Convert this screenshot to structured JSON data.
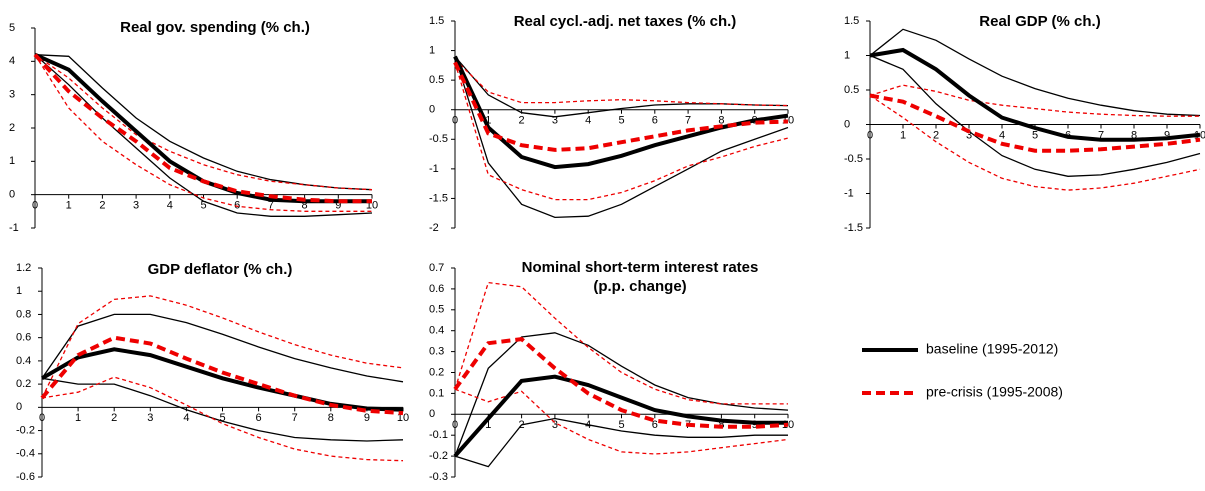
{
  "legend": [
    {
      "name": "baseline (1995-2012)",
      "color": "#000000",
      "dashed": false
    },
    {
      "name": "pre-crisis (1995-2008)",
      "color": "#ee0000",
      "dashed": true
    }
  ],
  "chart_data": [
    {
      "type": "line",
      "title": "Real gov. spending (% ch.)",
      "x": [
        0,
        1,
        2,
        3,
        4,
        5,
        6,
        7,
        8,
        9,
        10
      ],
      "xlim": [
        0,
        10
      ],
      "xticks": [
        0,
        1,
        2,
        3,
        4,
        5,
        6,
        7,
        8,
        9,
        10
      ],
      "ylim": [
        -1,
        5
      ],
      "yticks": [
        -1,
        0,
        1,
        2,
        3,
        4,
        5
      ],
      "series": [
        {
          "color": "#000000",
          "width": 1.3,
          "dashed": false,
          "values": [
            4.2,
            3.3,
            2.3,
            1.4,
            0.5,
            -0.2,
            -0.55,
            -0.65,
            -0.65,
            -0.6,
            -0.55
          ]
        },
        {
          "color": "#000000",
          "width": 1.3,
          "dashed": false,
          "values": [
            4.2,
            4.15,
            3.2,
            2.3,
            1.6,
            1.1,
            0.7,
            0.45,
            0.3,
            0.2,
            0.15
          ]
        },
        {
          "color": "#ee0000",
          "width": 1.3,
          "dashed": true,
          "values": [
            4.2,
            2.6,
            1.6,
            0.9,
            0.3,
            -0.1,
            -0.35,
            -0.45,
            -0.5,
            -0.5,
            -0.5
          ]
        },
        {
          "color": "#ee0000",
          "width": 1.3,
          "dashed": true,
          "values": [
            4.2,
            3.5,
            2.6,
            1.8,
            1.3,
            0.9,
            0.6,
            0.4,
            0.3,
            0.2,
            0.15
          ]
        },
        {
          "color": "#000000",
          "width": 4,
          "dashed": false,
          "values": [
            4.2,
            3.75,
            2.8,
            1.9,
            1.0,
            0.4,
            0.05,
            -0.15,
            -0.2,
            -0.2,
            -0.2
          ]
        },
        {
          "color": "#ee0000",
          "width": 4,
          "dashed": true,
          "values": [
            4.2,
            3.1,
            2.3,
            1.6,
            0.8,
            0.4,
            0.1,
            -0.05,
            -0.15,
            -0.2,
            -0.2
          ]
        }
      ]
    },
    {
      "type": "line",
      "title": "Real cycl.-adj. net taxes (% ch.)",
      "x": [
        0,
        1,
        2,
        3,
        4,
        5,
        6,
        7,
        8,
        9,
        10
      ],
      "xlim": [
        0,
        10
      ],
      "xticks": [
        0,
        1,
        2,
        3,
        4,
        5,
        6,
        7,
        8,
        9,
        10
      ],
      "ylim": [
        -2,
        1.5
      ],
      "yticks": [
        -2,
        -1.5,
        -1,
        -0.5,
        0,
        0.5,
        1,
        1.5
      ],
      "series": [
        {
          "color": "#000000",
          "width": 1.3,
          "dashed": false,
          "values": [
            0.9,
            -0.9,
            -1.6,
            -1.82,
            -1.8,
            -1.6,
            -1.3,
            -1.0,
            -0.7,
            -0.5,
            -0.3
          ]
        },
        {
          "color": "#000000",
          "width": 1.3,
          "dashed": false,
          "values": [
            0.9,
            0.25,
            -0.05,
            -0.12,
            -0.05,
            0.02,
            0.08,
            0.1,
            0.1,
            0.08,
            0.07
          ]
        },
        {
          "color": "#ee0000",
          "width": 1.3,
          "dashed": true,
          "values": [
            0.8,
            -1.1,
            -1.35,
            -1.52,
            -1.52,
            -1.4,
            -1.2,
            -0.95,
            -0.8,
            -0.62,
            -0.48
          ]
        },
        {
          "color": "#ee0000",
          "width": 1.3,
          "dashed": true,
          "values": [
            0.85,
            0.3,
            0.12,
            0.12,
            0.15,
            0.17,
            0.15,
            0.12,
            0.1,
            0.08,
            0.07
          ]
        },
        {
          "color": "#000000",
          "width": 4,
          "dashed": false,
          "values": [
            0.9,
            -0.3,
            -0.8,
            -0.97,
            -0.92,
            -0.78,
            -0.6,
            -0.45,
            -0.3,
            -0.18,
            -0.1
          ]
        },
        {
          "color": "#ee0000",
          "width": 4,
          "dashed": true,
          "values": [
            0.8,
            -0.4,
            -0.6,
            -0.68,
            -0.65,
            -0.55,
            -0.45,
            -0.35,
            -0.28,
            -0.22,
            -0.2
          ]
        }
      ]
    },
    {
      "type": "line",
      "title": "Real GDP (% ch.)",
      "x": [
        0,
        1,
        2,
        3,
        4,
        5,
        6,
        7,
        8,
        9,
        10
      ],
      "xlim": [
        0,
        10
      ],
      "xticks": [
        0,
        1,
        2,
        3,
        4,
        5,
        6,
        7,
        8,
        9,
        10
      ],
      "ylim": [
        -1.5,
        1.5
      ],
      "yticks": [
        -1.5,
        -1,
        -0.5,
        0,
        0.5,
        1,
        1.5
      ],
      "series": [
        {
          "color": "#000000",
          "width": 1.3,
          "dashed": false,
          "values": [
            1.0,
            0.8,
            0.3,
            -0.1,
            -0.45,
            -0.65,
            -0.75,
            -0.73,
            -0.65,
            -0.55,
            -0.42
          ]
        },
        {
          "color": "#000000",
          "width": 1.3,
          "dashed": false,
          "values": [
            1.0,
            1.38,
            1.22,
            0.95,
            0.7,
            0.52,
            0.38,
            0.28,
            0.2,
            0.15,
            0.13
          ]
        },
        {
          "color": "#ee0000",
          "width": 1.3,
          "dashed": true,
          "values": [
            0.42,
            0.1,
            -0.25,
            -0.55,
            -0.78,
            -0.9,
            -0.95,
            -0.92,
            -0.85,
            -0.75,
            -0.65
          ]
        },
        {
          "color": "#ee0000",
          "width": 1.3,
          "dashed": true,
          "values": [
            0.42,
            0.57,
            0.48,
            0.35,
            0.28,
            0.23,
            0.18,
            0.15,
            0.13,
            0.12,
            0.12
          ]
        },
        {
          "color": "#000000",
          "width": 4,
          "dashed": false,
          "values": [
            1.0,
            1.08,
            0.8,
            0.42,
            0.1,
            -0.05,
            -0.18,
            -0.22,
            -0.22,
            -0.2,
            -0.15
          ]
        },
        {
          "color": "#ee0000",
          "width": 4,
          "dashed": true,
          "values": [
            0.42,
            0.33,
            0.12,
            -0.1,
            -0.28,
            -0.38,
            -0.38,
            -0.36,
            -0.32,
            -0.28,
            -0.22
          ]
        }
      ]
    },
    {
      "type": "line",
      "title": "GDP deflator (% ch.)",
      "x": [
        0,
        1,
        2,
        3,
        4,
        5,
        6,
        7,
        8,
        9,
        10
      ],
      "xlim": [
        0,
        10
      ],
      "xticks": [
        0,
        1,
        2,
        3,
        4,
        5,
        6,
        7,
        8,
        9,
        10
      ],
      "ylim": [
        -0.6,
        1.2
      ],
      "yticks": [
        -0.6,
        -0.4,
        -0.2,
        0,
        0.2,
        0.4,
        0.6,
        0.8,
        1,
        1.2
      ],
      "series": [
        {
          "color": "#000000",
          "width": 1.3,
          "dashed": false,
          "values": [
            0.25,
            0.2,
            0.2,
            0.1,
            -0.02,
            -0.12,
            -0.2,
            -0.26,
            -0.28,
            -0.29,
            -0.28
          ]
        },
        {
          "color": "#000000",
          "width": 1.3,
          "dashed": false,
          "values": [
            0.25,
            0.7,
            0.8,
            0.8,
            0.73,
            0.63,
            0.52,
            0.42,
            0.34,
            0.27,
            0.22
          ]
        },
        {
          "color": "#ee0000",
          "width": 1.3,
          "dashed": true,
          "values": [
            0.08,
            0.13,
            0.26,
            0.17,
            0.02,
            -0.14,
            -0.26,
            -0.36,
            -0.42,
            -0.45,
            -0.46
          ]
        },
        {
          "color": "#ee0000",
          "width": 1.3,
          "dashed": true,
          "values": [
            0.08,
            0.72,
            0.93,
            0.96,
            0.88,
            0.77,
            0.65,
            0.54,
            0.45,
            0.38,
            0.34
          ]
        },
        {
          "color": "#000000",
          "width": 4,
          "dashed": false,
          "values": [
            0.25,
            0.43,
            0.5,
            0.45,
            0.35,
            0.25,
            0.17,
            0.1,
            0.03,
            -0.01,
            -0.02
          ]
        },
        {
          "color": "#ee0000",
          "width": 4,
          "dashed": true,
          "values": [
            0.08,
            0.45,
            0.6,
            0.55,
            0.42,
            0.3,
            0.2,
            0.1,
            0.02,
            -0.03,
            -0.05
          ]
        }
      ]
    },
    {
      "type": "line",
      "title": [
        "Nominal short-term interest rates",
        "(p.p. change)"
      ],
      "x": [
        0,
        1,
        2,
        3,
        4,
        5,
        6,
        7,
        8,
        9,
        10
      ],
      "xlim": [
        0,
        10
      ],
      "xticks": [
        0,
        1,
        2,
        3,
        4,
        5,
        6,
        7,
        8,
        9,
        10
      ],
      "ylim": [
        -0.3,
        0.7
      ],
      "yticks": [
        -0.3,
        -0.2,
        -0.1,
        0,
        0.1,
        0.2,
        0.3,
        0.4,
        0.5,
        0.6,
        0.7
      ],
      "series": [
        {
          "color": "#000000",
          "width": 1.3,
          "dashed": false,
          "values": [
            -0.2,
            -0.25,
            -0.05,
            -0.02,
            -0.05,
            -0.08,
            -0.1,
            -0.11,
            -0.11,
            -0.1,
            -0.1
          ]
        },
        {
          "color": "#000000",
          "width": 1.3,
          "dashed": false,
          "values": [
            -0.2,
            0.22,
            0.37,
            0.39,
            0.33,
            0.23,
            0.14,
            0.08,
            0.05,
            0.03,
            0.02
          ]
        },
        {
          "color": "#ee0000",
          "width": 1.3,
          "dashed": true,
          "values": [
            0.12,
            0.06,
            0.11,
            -0.04,
            -0.12,
            -0.18,
            -0.19,
            -0.18,
            -0.16,
            -0.14,
            -0.12
          ]
        },
        {
          "color": "#ee0000",
          "width": 1.3,
          "dashed": true,
          "values": [
            0.12,
            0.63,
            0.61,
            0.46,
            0.32,
            0.2,
            0.12,
            0.07,
            0.05,
            0.05,
            0.05
          ]
        },
        {
          "color": "#000000",
          "width": 4,
          "dashed": false,
          "values": [
            -0.2,
            -0.02,
            0.16,
            0.18,
            0.14,
            0.08,
            0.02,
            -0.01,
            -0.03,
            -0.04,
            -0.04
          ]
        },
        {
          "color": "#ee0000",
          "width": 4,
          "dashed": true,
          "values": [
            0.12,
            0.34,
            0.36,
            0.22,
            0.1,
            0.02,
            -0.03,
            -0.05,
            -0.06,
            -0.06,
            -0.05
          ]
        }
      ]
    }
  ]
}
